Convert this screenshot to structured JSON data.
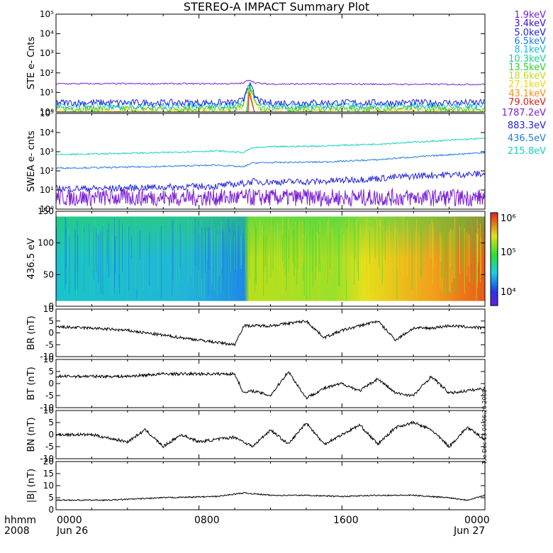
{
  "title": "STEREO-A IMPACT Summary Plot",
  "colors": {
    "ste": [
      "#7a1fd6",
      "#3a10c9",
      "#1f1fe0",
      "#1f7ae6",
      "#19b9e0",
      "#16d39a",
      "#2fd22f",
      "#b6e01c",
      "#f0d41a",
      "#f0901b",
      "#d42222"
    ],
    "swea": [
      "#7a1fd6",
      "#1f1fe0",
      "#1f7ae6",
      "#19d0c0"
    ],
    "mag_line": "#000000"
  },
  "legends": {
    "ste": [
      "1.9keV",
      "3.4keV",
      "5.0keV",
      "6.5keV",
      "8.1keV",
      "10.3keV",
      "13.5keV",
      "18.6keV",
      "27.1keV",
      "43.1keV",
      "79.0keV"
    ],
    "swea": [
      "1787.2eV",
      "883.3eV",
      "436.5eV",
      "215.8eV"
    ]
  },
  "time_axis": {
    "row1_labels": [
      "hhmm",
      "0000",
      "0800",
      "1600",
      "0000"
    ],
    "row2_labels": [
      "2008",
      "Jun 26",
      "Jun 27"
    ]
  },
  "stamp": "Tue Dec 13 04:06:20 2008",
  "chart_data": [
    {
      "type": "line",
      "panel": "ste",
      "ylabel": "STE e- Cnts",
      "yscale": "log",
      "ylim": [
        1,
        100000
      ],
      "yticks": [
        "10⁰",
        "10¹",
        "10²",
        "10³",
        "10⁴",
        "10⁵"
      ],
      "x_hours": [
        0,
        4,
        8,
        10,
        10.5,
        10.8,
        11.1,
        11.5,
        12,
        16,
        20,
        24
      ],
      "series": [
        {
          "name": "1.9keV",
          "values": [
            28,
            28,
            28,
            28,
            30,
            45,
            32,
            28,
            27,
            27,
            26,
            26
          ]
        },
        {
          "name": "3.4keV",
          "values": [
            3,
            3,
            3,
            3,
            4,
            25,
            6,
            3,
            3,
            3,
            3,
            3
          ]
        },
        {
          "name": "5.0keV",
          "values": [
            2.2,
            2.2,
            2.2,
            2.2,
            3,
            22,
            5,
            2.2,
            2.1,
            2.1,
            2.1,
            2.1
          ]
        },
        {
          "name": "6.5keV",
          "values": [
            1.5,
            1.5,
            1.5,
            1.5,
            2.5,
            20,
            4,
            1.5,
            1.5,
            1.5,
            1.5,
            1.5
          ]
        },
        {
          "name": "8.1keV",
          "values": [
            1.2,
            1.2,
            1.2,
            1.2,
            2,
            18,
            3,
            1.2,
            1.2,
            1.2,
            1.2,
            1.2
          ]
        }
      ]
    },
    {
      "type": "line",
      "panel": "swea",
      "ylabel": "SWEA e- cnts",
      "yscale": "log",
      "ylim": [
        1,
        100000
      ],
      "yticks": [
        "10⁰",
        "10¹",
        "10²",
        "10³",
        "10⁴",
        "10⁵"
      ],
      "x_hours": [
        0,
        3,
        6,
        9,
        10.5,
        11,
        12,
        15,
        18,
        21,
        24
      ],
      "series": [
        {
          "name": "1787.2eV",
          "values": [
            4,
            4,
            4,
            4,
            4,
            4,
            4,
            4,
            4,
            4,
            4
          ]
        },
        {
          "name": "883.3eV",
          "values": [
            12,
            12,
            14,
            16,
            22,
            28,
            26,
            28,
            40,
            60,
            70
          ]
        },
        {
          "name": "436.5eV",
          "values": [
            140,
            150,
            170,
            200,
            160,
            260,
            270,
            290,
            380,
            600,
            900
          ]
        },
        {
          "name": "215.8eV",
          "values": [
            700,
            800,
            900,
            1100,
            900,
            1600,
            1800,
            2000,
            2500,
            3500,
            5000
          ]
        }
      ]
    },
    {
      "type": "heatmap",
      "panel": "pitch",
      "ylabel": "436.5 eV",
      "ylim": [
        0,
        180
      ],
      "yticks": [
        "0",
        "50",
        "100",
        "150"
      ],
      "colorbar_ticks": [
        "10⁴",
        "10⁵",
        "10⁶"
      ],
      "x_hours": [
        0,
        6,
        10.5,
        11,
        16,
        24
      ]
    },
    {
      "type": "line",
      "panel": "br",
      "ylabel": "BR (nT)",
      "ylim": [
        -10,
        10
      ],
      "yticks": [
        "-10",
        "-5",
        "0",
        "5",
        "10"
      ],
      "x_hours": [
        0,
        2,
        4,
        6,
        8,
        10,
        10.5,
        12,
        13,
        14,
        15,
        16,
        18,
        19,
        20,
        21,
        22,
        24
      ],
      "values": [
        2.5,
        2,
        1,
        -1,
        -3,
        -5,
        3,
        3,
        4,
        5,
        -2,
        1,
        5,
        -3,
        2,
        2,
        3,
        2
      ]
    },
    {
      "type": "line",
      "panel": "bt",
      "ylabel": "BT (nT)",
      "ylim": [
        -10,
        10
      ],
      "yticks": [
        "-10",
        "-5",
        "0",
        "5",
        "10"
      ],
      "x_hours": [
        0,
        2,
        4,
        6,
        8,
        10,
        10.5,
        11,
        12,
        13,
        14,
        15,
        16,
        17,
        18,
        19,
        20,
        21,
        22,
        24
      ],
      "values": [
        3,
        3,
        3,
        4,
        4,
        4,
        -4,
        -3,
        -5,
        5,
        -6,
        -2,
        0,
        -3,
        2,
        -4,
        -5,
        3,
        -4,
        -2
      ]
    },
    {
      "type": "line",
      "panel": "bn",
      "ylabel": "BN (nT)",
      "ylim": [
        -10,
        10
      ],
      "yticks": [
        "-10",
        "-5",
        "0",
        "5",
        "10"
      ],
      "x_hours": [
        0,
        2,
        4,
        5,
        6,
        7,
        8,
        10,
        11,
        12,
        13,
        14,
        15,
        16,
        17,
        18,
        19,
        20,
        21,
        22,
        23,
        24
      ],
      "values": [
        0,
        0,
        -3,
        2,
        -5,
        0,
        -3,
        -1,
        -5,
        2,
        -4,
        5,
        -4,
        0,
        4,
        -4,
        3,
        5,
        2,
        -5,
        3,
        -2
      ]
    },
    {
      "type": "line",
      "panel": "bmag",
      "ylabel": "|B| (nT)",
      "ylim": [
        0,
        20
      ],
      "yticks": [
        "0",
        "5",
        "10",
        "15",
        "20"
      ],
      "x_hours": [
        0,
        3,
        6,
        9,
        10.5,
        12,
        14,
        16,
        18,
        20,
        22,
        23,
        24
      ],
      "values": [
        4,
        4,
        5,
        5.5,
        7,
        6,
        6,
        5.5,
        6,
        6,
        5,
        4,
        6
      ]
    }
  ]
}
